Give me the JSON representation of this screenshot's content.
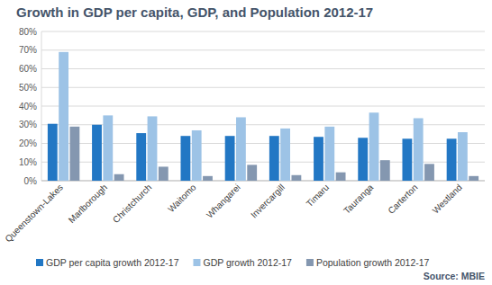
{
  "chart_data": {
    "type": "bar",
    "title": "Growth in GDP per capita, GDP, and Population 2012-17",
    "annotations": [
      "Source: MBIE"
    ],
    "categories": [
      "Queenstown-Lakes",
      "Marlborough",
      "Christchurch",
      "Waitomo",
      "Whangarei",
      "Invercargill",
      "Timaru",
      "Tauranga",
      "Carterton",
      "Westland"
    ],
    "series": [
      {
        "name": "GDP per capita growth 2012-17",
        "color": "#2277c4",
        "values": [
          30.5,
          30,
          25.5,
          24,
          24,
          24,
          23.5,
          23,
          22.5,
          22.5
        ]
      },
      {
        "name": "GDP growth 2012-17",
        "color": "#9dc3e6",
        "values": [
          69,
          35,
          34.5,
          27,
          34,
          28,
          29,
          36.5,
          33.5,
          26
        ]
      },
      {
        "name": "Population growth 2012-17",
        "color": "#8497b0",
        "values": [
          29,
          3.5,
          7.5,
          2.5,
          8.5,
          3,
          4.5,
          11,
          9,
          2.5
        ]
      }
    ],
    "ylim": [
      0,
      80
    ],
    "yticks": [
      {
        "value": 0,
        "label": "0%"
      },
      {
        "value": 10,
        "label": "10%"
      },
      {
        "value": 20,
        "label": "20%"
      },
      {
        "value": 30,
        "label": "30%"
      },
      {
        "value": 40,
        "label": "40%"
      },
      {
        "value": 50,
        "label": "50%"
      },
      {
        "value": 60,
        "label": "60%"
      },
      {
        "value": 70,
        "label": "70%"
      },
      {
        "value": 80,
        "label": "80%"
      }
    ],
    "grid": true,
    "legend": "bottom"
  }
}
